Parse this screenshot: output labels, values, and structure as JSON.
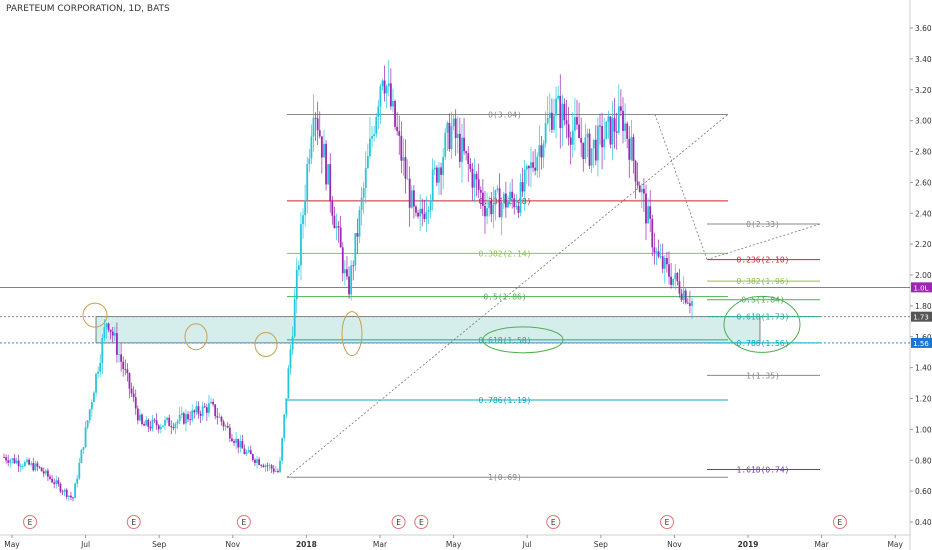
{
  "header": {
    "title": "PARETEUM CORPORATION, 1D, BATS"
  },
  "chart_data": {
    "type": "candlestick",
    "symbol": "PARETEUM CORPORATION",
    "interval": "1D",
    "exchange": "BATS",
    "ylim": [
      0.4,
      3.7
    ],
    "y_ticks": [
      "3.60",
      "3.40",
      "3.20",
      "3.00",
      "2.80",
      "2.60",
      "2.40",
      "2.20",
      "2.00",
      "1.80",
      "1.60",
      "1.40",
      "1.20",
      "1.00",
      "0.80",
      "0.60",
      "0.40"
    ],
    "x_ticks": [
      "May",
      "Jul",
      "Sep",
      "Nov",
      "2018",
      "Mar",
      "May",
      "Jul",
      "Sep",
      "Nov",
      "2019",
      "Mar",
      "May"
    ],
    "price_tags": [
      {
        "label": "1.0L",
        "value": 1.92,
        "color": "#9c27b0"
      },
      {
        "label": "1.73",
        "value": 1.73,
        "color": "#555555"
      },
      {
        "label": "1.56",
        "value": 1.56,
        "color": "#1976d2"
      }
    ],
    "fib_1": [
      {
        "label": "0(3.04)",
        "value": 3.04,
        "color": "#888888"
      },
      {
        "label": "0.236(2.48)",
        "value": 2.48,
        "color": "#c62828"
      },
      {
        "label": "0.382(2.14)",
        "value": 2.14,
        "color": "#8bc34a"
      },
      {
        "label": "0.5(1.86)",
        "value": 1.86,
        "color": "#4caf50"
      },
      {
        "label": "0.618(1.58)",
        "value": 1.58,
        "color": "#26a69a"
      },
      {
        "label": "0.786(1.19)",
        "value": 1.19,
        "color": "#00acc1"
      },
      {
        "label": "1(0.69)",
        "value": 0.69,
        "color": "#888888"
      }
    ],
    "fib_2": [
      {
        "label": "0(2.33)",
        "value": 2.33,
        "color": "#888888"
      },
      {
        "label": "0.236(2.10)",
        "value": 2.1,
        "color": "#c62828"
      },
      {
        "label": "0.382(1.96)",
        "value": 1.96,
        "color": "#8bc34a"
      },
      {
        "label": "0.5(1.84)",
        "value": 1.84,
        "color": "#4caf50"
      },
      {
        "label": "0.618(1.73)",
        "value": 1.73,
        "color": "#26a69a"
      },
      {
        "label": "0.786(1.56)",
        "value": 1.56,
        "color": "#00acc1"
      },
      {
        "label": "1(1.35)",
        "value": 1.35,
        "color": "#888888"
      },
      {
        "label": "1.618(0.74)",
        "value": 0.74,
        "color": "#673ab7"
      }
    ],
    "support_zone": {
      "low": 1.56,
      "high": 1.73,
      "color": "#b2dfdb"
    },
    "earnings_marker_label": "E",
    "earnings_markers": [
      0.033,
      0.147,
      0.268,
      0.438,
      0.463,
      0.608,
      0.733,
      0.923
    ],
    "series": [
      {
        "date": "2017-04",
        "close": 0.82
      },
      {
        "date": "2017-05",
        "close": 0.75
      },
      {
        "date": "2017-06",
        "close": 0.55
      },
      {
        "date": "2017-07",
        "close": 1.73
      },
      {
        "date": "2017-08",
        "close": 1.02
      },
      {
        "date": "2017-09",
        "close": 1.05
      },
      {
        "date": "2017-10",
        "close": 1.15
      },
      {
        "date": "2017-11",
        "close": 0.85
      },
      {
        "date": "2017-12",
        "close": 0.72
      },
      {
        "date": "2018-01",
        "close": 3.15
      },
      {
        "date": "2018-02",
        "close": 1.88
      },
      {
        "date": "2018-03",
        "close": 3.35
      },
      {
        "date": "2018-04",
        "close": 2.3
      },
      {
        "date": "2018-05",
        "close": 2.95
      },
      {
        "date": "2018-06",
        "close": 2.45
      },
      {
        "date": "2018-07",
        "close": 2.5
      },
      {
        "date": "2018-08",
        "close": 3.1
      },
      {
        "date": "2018-09",
        "close": 2.8
      },
      {
        "date": "2018-10",
        "close": 3.02
      },
      {
        "date": "2018-11",
        "close": 2.1
      },
      {
        "date": "2018-11-20",
        "close": 1.83
      }
    ]
  }
}
